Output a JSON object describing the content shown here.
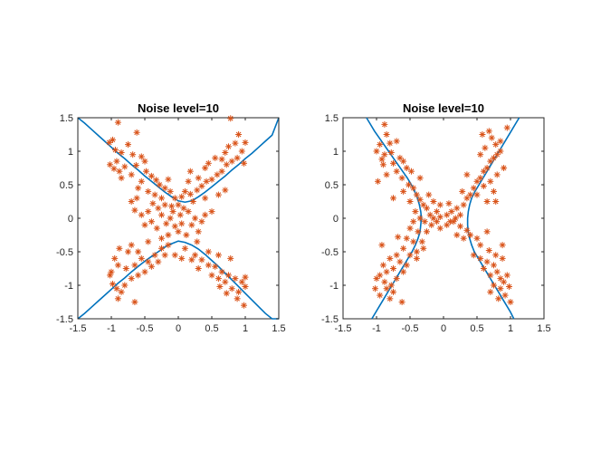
{
  "chart_data": [
    {
      "type": "scatter",
      "title": "Noise level=10",
      "xlim": [
        -1.5,
        1.5
      ],
      "ylim": [
        -1.5,
        1.5
      ],
      "xticks": [
        "-1.5",
        "-1",
        "-0.5",
        "0",
        "0.5",
        "1",
        "1.5"
      ],
      "yticks": [
        "1.5",
        "1",
        "0.5",
        "0",
        "-0.5",
        "-1",
        "-1.5"
      ],
      "grid": false,
      "colors": {
        "curve": "#0072bd",
        "points": "#d95319"
      },
      "marker": "asterisk",
      "curve": {
        "x": [
          -1.5,
          -1.4,
          -1.3,
          -1.2,
          -1.1,
          -1.0,
          -0.9,
          -0.8,
          -0.7,
          -0.6,
          -0.5,
          -0.4,
          -0.3,
          -0.2,
          -0.1,
          0.0,
          0.1,
          0.2,
          0.3,
          0.4,
          0.5,
          0.6,
          0.7,
          0.8,
          0.9,
          1.0,
          1.1,
          1.2,
          1.3,
          1.4,
          1.5
        ],
        "y_upper": [
          1.5,
          1.42,
          1.33,
          1.24,
          1.15,
          1.06,
          0.97,
          0.89,
          0.8,
          0.72,
          0.63,
          0.55,
          0.47,
          0.39,
          0.32,
          0.26,
          0.24,
          0.26,
          0.32,
          0.39,
          0.47,
          0.55,
          0.63,
          0.72,
          0.8,
          0.89,
          0.97,
          1.06,
          1.15,
          1.24,
          1.5
        ],
        "y_lower": [
          -1.5,
          -1.42,
          -1.33,
          -1.24,
          -1.15,
          -1.06,
          -0.97,
          -0.89,
          -0.8,
          -0.72,
          -0.64,
          -0.57,
          -0.5,
          -0.43,
          -0.38,
          -0.34,
          -0.36,
          -0.4,
          -0.46,
          -0.54,
          -0.63,
          -0.72,
          -0.82,
          -0.92,
          -1.02,
          -1.12,
          -1.22,
          -1.32,
          -1.42,
          -1.5,
          -1.6
        ]
      },
      "points": [
        [
          -0.9,
          1.43
        ],
        [
          -0.98,
          1.17
        ],
        [
          -1.03,
          1.13
        ],
        [
          -0.94,
          1.02
        ],
        [
          -0.85,
          0.98
        ],
        [
          -0.75,
          1.1
        ],
        [
          -0.62,
          1.28
        ],
        [
          -0.68,
          0.95
        ],
        [
          -0.55,
          0.92
        ],
        [
          -0.92,
          0.85
        ],
        [
          -1.02,
          0.8
        ],
        [
          -0.96,
          0.74
        ],
        [
          -0.8,
          0.77
        ],
        [
          -0.63,
          0.79
        ],
        [
          -0.48,
          0.7
        ],
        [
          -0.7,
          0.65
        ],
        [
          -0.4,
          0.63
        ],
        [
          -0.33,
          0.57
        ],
        [
          -0.55,
          0.55
        ],
        [
          -0.28,
          0.5
        ],
        [
          -0.2,
          0.45
        ],
        [
          -0.45,
          0.4
        ],
        [
          -0.12,
          0.4
        ],
        [
          -0.25,
          0.3
        ],
        [
          -0.05,
          0.3
        ],
        [
          0.05,
          0.32
        ],
        [
          0.1,
          0.4
        ],
        [
          0.18,
          0.36
        ],
        [
          0.28,
          0.42
        ],
        [
          0.35,
          0.48
        ],
        [
          0.42,
          0.55
        ],
        [
          0.5,
          0.58
        ],
        [
          0.58,
          0.65
        ],
        [
          0.65,
          0.7
        ],
        [
          0.72,
          0.8
        ],
        [
          0.8,
          0.85
        ],
        [
          0.88,
          0.9
        ],
        [
          0.95,
          1.0
        ],
        [
          0.55,
          0.9
        ],
        [
          0.7,
          0.98
        ],
        [
          0.85,
          1.12
        ],
        [
          1.0,
          1.13
        ],
        [
          0.78,
          1.49
        ],
        [
          0.9,
          1.25
        ],
        [
          0.75,
          1.07
        ],
        [
          0.4,
          0.75
        ],
        [
          0.3,
          0.6
        ],
        [
          0.15,
          0.55
        ],
        [
          0.45,
          0.82
        ],
        [
          0.65,
          0.88
        ],
        [
          0.98,
          0.82
        ],
        [
          -0.85,
          0.6
        ],
        [
          -0.6,
          0.45
        ],
        [
          -0.35,
          0.35
        ],
        [
          -0.1,
          0.18
        ],
        [
          0.0,
          0.2
        ],
        [
          0.08,
          0.15
        ],
        [
          -0.2,
          0.2
        ],
        [
          -0.3,
          0.15
        ],
        [
          -0.45,
          0.1
        ],
        [
          -0.55,
          0.05
        ],
        [
          -0.65,
          0.12
        ],
        [
          -0.4,
          -0.05
        ],
        [
          -0.25,
          0.05
        ],
        [
          -0.12,
          0.0
        ],
        [
          0.03,
          0.05
        ],
        [
          0.15,
          0.1
        ],
        [
          0.25,
          0.0
        ],
        [
          0.35,
          -0.05
        ],
        [
          0.2,
          -0.1
        ],
        [
          0.05,
          -0.08
        ],
        [
          -0.05,
          -0.12
        ],
        [
          -0.18,
          -0.08
        ],
        [
          -0.32,
          -0.15
        ],
        [
          -0.15,
          -0.25
        ],
        [
          0.0,
          -0.2
        ],
        [
          0.12,
          -0.25
        ],
        [
          0.3,
          -0.2
        ],
        [
          0.4,
          0.05
        ],
        [
          0.5,
          0.1
        ],
        [
          -0.5,
          -0.1
        ],
        [
          -0.08,
          0.1
        ],
        [
          -0.7,
          0.25
        ],
        [
          -0.38,
          0.22
        ],
        [
          0.22,
          0.25
        ],
        [
          -0.6,
          -0.5
        ],
        [
          -0.75,
          -0.5
        ],
        [
          -0.88,
          -0.45
        ],
        [
          -0.55,
          -0.6
        ],
        [
          -0.45,
          -0.65
        ],
        [
          -0.35,
          -0.55
        ],
        [
          -0.25,
          -0.45
        ],
        [
          -0.15,
          -0.4
        ],
        [
          -0.95,
          -0.6
        ],
        [
          -1.0,
          -0.8
        ],
        [
          -0.9,
          -0.7
        ],
        [
          -0.78,
          -0.75
        ],
        [
          -0.65,
          -0.7
        ],
        [
          -0.5,
          -0.8
        ],
        [
          -0.4,
          -0.72
        ],
        [
          -0.3,
          -0.65
        ],
        [
          -0.2,
          -0.55
        ],
        [
          0.1,
          -0.45
        ],
        [
          0.25,
          -0.55
        ],
        [
          0.35,
          -0.62
        ],
        [
          0.45,
          -0.7
        ],
        [
          0.55,
          -0.72
        ],
        [
          0.65,
          -0.8
        ],
        [
          0.75,
          -0.85
        ],
        [
          0.85,
          -0.9
        ],
        [
          0.95,
          -0.95
        ],
        [
          1.0,
          -1.02
        ],
        [
          0.9,
          -1.1
        ],
        [
          0.8,
          -1.05
        ],
        [
          0.7,
          -0.95
        ],
        [
          0.6,
          -0.9
        ],
        [
          0.5,
          -0.85
        ],
        [
          -1.02,
          -0.85
        ],
        [
          -0.98,
          -0.98
        ],
        [
          -0.92,
          -1.05
        ],
        [
          -0.85,
          -1.1
        ],
        [
          -0.8,
          -1.0
        ],
        [
          -0.7,
          -0.9
        ],
        [
          -0.6,
          -0.85
        ],
        [
          -0.65,
          -1.25
        ],
        [
          -0.9,
          -1.2
        ],
        [
          0.62,
          -1.02
        ],
        [
          0.72,
          -1.12
        ],
        [
          0.88,
          -1.2
        ],
        [
          0.98,
          -1.3
        ],
        [
          1.0,
          -0.88
        ],
        [
          0.3,
          -0.75
        ],
        [
          0.2,
          -0.62
        ],
        [
          -0.05,
          -0.55
        ],
        [
          0.05,
          -0.6
        ],
        [
          -0.45,
          -0.35
        ],
        [
          -0.7,
          -0.4
        ],
        [
          0.45,
          -0.5
        ],
        [
          0.6,
          -0.55
        ],
        [
          0.78,
          -0.6
        ],
        [
          0.4,
          0.3
        ],
        [
          -0.88,
          0.7
        ],
        [
          -0.15,
          0.58
        ],
        [
          0.18,
          0.7
        ],
        [
          -0.5,
          0.85
        ],
        [
          0.6,
          0.35
        ],
        [
          -0.25,
          -0.3
        ],
        [
          0.28,
          -0.35
        ],
        [
          -0.62,
          0.3
        ],
        [
          0.7,
          0.42
        ]
      ]
    },
    {
      "type": "scatter",
      "title": "Noise level=10",
      "xlim": [
        -1.5,
        1.5
      ],
      "ylim": [
        -1.5,
        1.5
      ],
      "xticks": [
        "-1.5",
        "-1",
        "-0.5",
        "0",
        "0.5",
        "1",
        "1.5"
      ],
      "yticks": [
        "1.5",
        "1",
        "0.5",
        "0",
        "-0.5",
        "-1",
        "-1.5"
      ],
      "grid": false,
      "colors": {
        "curve": "#0072bd",
        "points": "#d95319"
      },
      "marker": "asterisk",
      "curve": {
        "y": [
          -1.5,
          -1.4,
          -1.3,
          -1.2,
          -1.1,
          -1.0,
          -0.9,
          -0.8,
          -0.7,
          -0.6,
          -0.5,
          -0.4,
          -0.3,
          -0.2,
          -0.1,
          0.0,
          0.1,
          0.2,
          0.3,
          0.4,
          0.5,
          0.6,
          0.7,
          0.8,
          0.9,
          1.0,
          1.1,
          1.2,
          1.3,
          1.4,
          1.5
        ],
        "x_left": [
          -1.07,
          -1.01,
          -0.95,
          -0.89,
          -0.83,
          -0.77,
          -0.71,
          -0.65,
          -0.59,
          -0.53,
          -0.47,
          -0.42,
          -0.38,
          -0.35,
          -0.34,
          -0.33,
          -0.34,
          -0.36,
          -0.39,
          -0.43,
          -0.48,
          -0.54,
          -0.61,
          -0.68,
          -0.75,
          -0.82,
          -0.89,
          -0.96,
          -1.03,
          -1.09,
          -1.15
        ],
        "x_right": [
          1.05,
          1.0,
          0.94,
          0.88,
          0.82,
          0.76,
          0.7,
          0.64,
          0.58,
          0.52,
          0.46,
          0.42,
          0.39,
          0.37,
          0.36,
          0.36,
          0.37,
          0.39,
          0.42,
          0.47,
          0.53,
          0.59,
          0.65,
          0.71,
          0.77,
          0.83,
          0.89,
          0.95,
          1.01,
          1.07,
          1.13
        ]
      },
      "points": [
        [
          -0.85,
          1.25
        ],
        [
          -0.95,
          1.1
        ],
        [
          -0.8,
          1.12
        ],
        [
          -0.7,
          1.15
        ],
        [
          -1.0,
          1.0
        ],
        [
          -0.88,
          0.95
        ],
        [
          -0.78,
          0.98
        ],
        [
          -0.65,
          0.9
        ],
        [
          -0.9,
          0.8
        ],
        [
          -0.75,
          0.82
        ],
        [
          -0.6,
          0.85
        ],
        [
          -0.55,
          0.75
        ],
        [
          -0.85,
          0.65
        ],
        [
          -0.7,
          0.7
        ],
        [
          -0.62,
          0.6
        ],
        [
          -0.48,
          0.7
        ],
        [
          -0.52,
          0.5
        ],
        [
          -0.45,
          0.45
        ],
        [
          -0.4,
          0.35
        ],
        [
          -0.6,
          0.4
        ],
        [
          -0.35,
          0.28
        ],
        [
          -0.3,
          0.2
        ],
        [
          -0.5,
          0.25
        ],
        [
          -0.25,
          0.15
        ],
        [
          -0.42,
          0.1
        ],
        [
          -0.2,
          0.05
        ],
        [
          -0.35,
          0.0
        ],
        [
          -0.15,
          0.0
        ],
        [
          -0.28,
          -0.05
        ],
        [
          -0.45,
          -0.05
        ],
        [
          -0.1,
          0.1
        ],
        [
          -0.05,
          0.02
        ],
        [
          0.05,
          0.05
        ],
        [
          0.12,
          0.1
        ],
        [
          0.2,
          0.15
        ],
        [
          0.25,
          0.05
        ],
        [
          0.3,
          0.2
        ],
        [
          0.35,
          0.3
        ],
        [
          0.4,
          0.35
        ],
        [
          0.45,
          0.45
        ],
        [
          0.5,
          0.55
        ],
        [
          0.55,
          0.6
        ],
        [
          0.6,
          0.7
        ],
        [
          0.65,
          0.75
        ],
        [
          0.7,
          0.85
        ],
        [
          0.75,
          0.9
        ],
        [
          0.8,
          0.95
        ],
        [
          0.85,
          1.0
        ],
        [
          0.78,
          1.1
        ],
        [
          0.72,
          1.2
        ],
        [
          0.62,
          1.05
        ],
        [
          0.55,
          0.95
        ],
        [
          0.8,
          0.65
        ],
        [
          0.7,
          0.55
        ],
        [
          0.75,
          0.4
        ],
        [
          0.6,
          0.48
        ],
        [
          0.5,
          0.35
        ],
        [
          0.58,
          1.25
        ],
        [
          0.68,
          1.3
        ],
        [
          0.65,
          0.25
        ],
        [
          0.15,
          -0.05
        ],
        [
          0.05,
          -0.1
        ],
        [
          -0.05,
          -0.15
        ],
        [
          -0.18,
          -0.1
        ],
        [
          -0.25,
          -0.2
        ],
        [
          -0.38,
          -0.2
        ],
        [
          -0.5,
          -0.15
        ],
        [
          0.25,
          -0.12
        ],
        [
          0.35,
          -0.18
        ],
        [
          0.3,
          -0.3
        ],
        [
          0.4,
          -0.25
        ],
        [
          0.5,
          -0.3
        ],
        [
          0.55,
          -0.4
        ],
        [
          0.2,
          -0.25
        ],
        [
          -0.32,
          -0.35
        ],
        [
          -0.45,
          -0.35
        ],
        [
          -0.55,
          -0.3
        ],
        [
          -0.6,
          -0.45
        ],
        [
          -0.5,
          -0.55
        ],
        [
          -0.4,
          -0.5
        ],
        [
          -0.7,
          -0.55
        ],
        [
          -0.65,
          -0.65
        ],
        [
          -0.8,
          -0.6
        ],
        [
          -0.75,
          -0.75
        ],
        [
          -0.85,
          -0.8
        ],
        [
          -0.9,
          -0.7
        ],
        [
          -0.95,
          -0.85
        ],
        [
          -1.0,
          -0.9
        ],
        [
          -0.88,
          -0.95
        ],
        [
          -0.78,
          -1.0
        ],
        [
          -0.7,
          -0.9
        ],
        [
          -0.6,
          -0.8
        ],
        [
          -0.55,
          -0.7
        ],
        [
          -0.85,
          -1.05
        ],
        [
          -0.75,
          -1.1
        ],
        [
          -0.95,
          -1.15
        ],
        [
          -1.02,
          -1.05
        ],
        [
          -0.62,
          -1.25
        ],
        [
          -0.8,
          -1.2
        ],
        [
          0.45,
          -0.55
        ],
        [
          0.55,
          -0.6
        ],
        [
          0.65,
          -0.65
        ],
        [
          0.75,
          -0.7
        ],
        [
          0.8,
          -0.8
        ],
        [
          0.85,
          -0.9
        ],
        [
          0.9,
          -0.95
        ],
        [
          0.95,
          -0.85
        ],
        [
          0.7,
          -0.85
        ],
        [
          0.6,
          -0.75
        ],
        [
          0.75,
          -1.0
        ],
        [
          0.85,
          -1.05
        ],
        [
          0.92,
          -1.15
        ],
        [
          1.0,
          -1.25
        ],
        [
          0.82,
          -1.2
        ],
        [
          0.7,
          -1.1
        ],
        [
          0.98,
          -1.02
        ],
        [
          0.88,
          -0.6
        ],
        [
          0.78,
          -0.55
        ],
        [
          0.68,
          -0.48
        ],
        [
          -0.15,
          0.25
        ],
        [
          -0.05,
          0.2
        ],
        [
          0.08,
          0.22
        ],
        [
          -0.4,
          -0.6
        ],
        [
          -0.3,
          -0.45
        ],
        [
          0.1,
          -0.05
        ],
        [
          -0.1,
          -0.05
        ],
        [
          0.18,
          0.0
        ],
        [
          -0.22,
          0.35
        ],
        [
          0.28,
          0.4
        ],
        [
          0.85,
          1.15
        ],
        [
          -0.92,
          0.88
        ],
        [
          -0.68,
          -0.28
        ],
        [
          0.65,
          -0.2
        ],
        [
          -0.75,
          0.3
        ],
        [
          0.78,
          0.25
        ],
        [
          0.9,
          0.75
        ],
        [
          -0.98,
          0.55
        ],
        [
          -0.88,
          1.4
        ],
        [
          0.95,
          1.35
        ],
        [
          0.88,
          -0.4
        ],
        [
          -0.92,
          -0.4
        ],
        [
          0.35,
          0.65
        ],
        [
          -0.35,
          0.6
        ]
      ]
    }
  ]
}
